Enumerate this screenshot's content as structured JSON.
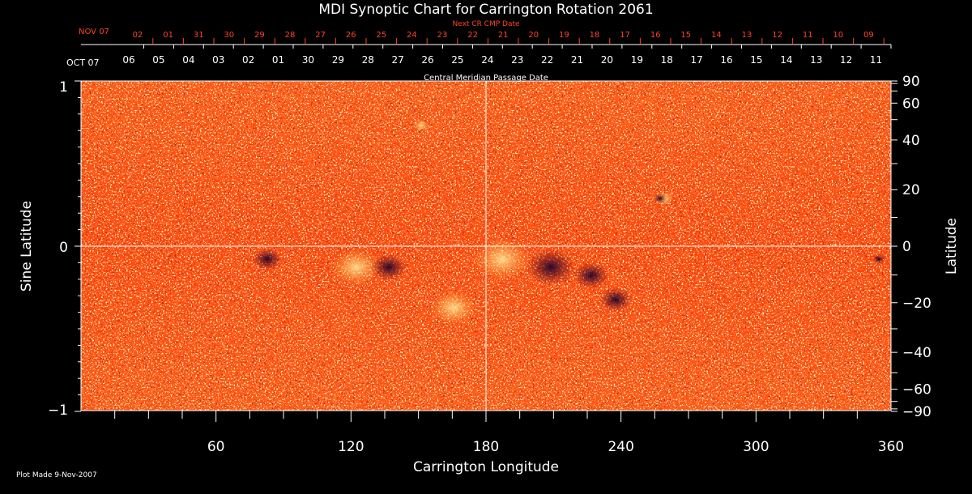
{
  "chart_data": {
    "type": "heatmap",
    "title": "MDI Synoptic Chart for Carrington Rotation 2061",
    "xlabel": "Carrington Longitude",
    "ylabel_left": "Sine Latitude",
    "ylabel_right": "Latitude",
    "xlim": [
      0,
      360
    ],
    "ylim": [
      -1,
      1
    ],
    "x_ticks": [
      "60",
      "120",
      "180",
      "240",
      "300",
      "360"
    ],
    "y_ticks_left": [
      "1",
      "0",
      "−1"
    ],
    "y_ticks_right": [
      "90",
      "60",
      "40",
      "20",
      "0",
      "−20",
      "−40",
      "−60",
      "−90"
    ],
    "cmp_date_label": "Central Meridian Passage Date",
    "cmp_month_label": "OCT 07",
    "cmp_dates": [
      "06",
      "05",
      "04",
      "03",
      "02",
      "01",
      "30",
      "29",
      "28",
      "27",
      "26",
      "25",
      "24",
      "23",
      "22",
      "21",
      "20",
      "19",
      "18",
      "17",
      "16",
      "15",
      "14",
      "13",
      "12",
      "11"
    ],
    "next_cr_label": "Next CR CMP Date",
    "next_cr_month_label": "NOV 07",
    "next_cr_dates": [
      "02",
      "01",
      "31",
      "30",
      "29",
      "28",
      "27",
      "26",
      "25",
      "24",
      "23",
      "22",
      "21",
      "20",
      "19",
      "18",
      "17",
      "16",
      "15",
      "14",
      "13",
      "12",
      "11",
      "10",
      "09"
    ],
    "colors": {
      "background": "#000000",
      "axis": "#ffffff",
      "next_cr_text": "#ff4422",
      "field_base": "#ff4a0c"
    },
    "footer": "Plot Made  9-Nov-2007"
  }
}
